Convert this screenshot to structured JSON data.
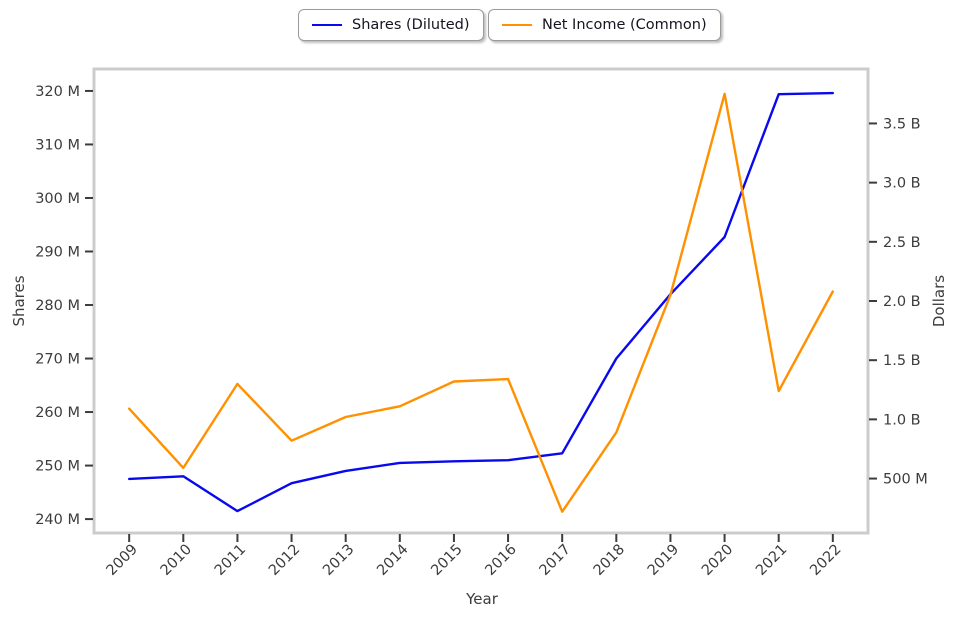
{
  "chart_data": {
    "type": "line",
    "xlabel": "Year",
    "x": [
      2009,
      2010,
      2011,
      2012,
      2013,
      2014,
      2015,
      2016,
      2017,
      2018,
      2019,
      2020,
      2021,
      2022
    ],
    "x_range": [
      2008.35,
      2022.65
    ],
    "x_tick_rotation_deg": 45,
    "grid": false,
    "legend_position": "top-center",
    "series": [
      {
        "name": "Shares (Diluted)",
        "axis": "left",
        "color": "#0909ee",
        "unit": "shares (M)",
        "values": [
          247.5,
          248.0,
          241.5,
          246.7,
          249.0,
          250.5,
          250.8,
          251.0,
          252.3,
          270.0,
          282.0,
          292.7,
          319.4,
          319.6
        ]
      },
      {
        "name": "Net Income (Common)",
        "axis": "right",
        "color": "#ff9100",
        "unit": "dollars (B)",
        "values": [
          1.09,
          0.59,
          1.3,
          0.82,
          1.02,
          1.11,
          1.32,
          1.34,
          0.22,
          0.89,
          2.05,
          3.75,
          1.24,
          2.08
        ]
      }
    ],
    "y_left": {
      "label": "Shares",
      "range": [
        237.4,
        324.1
      ],
      "ticks": [
        {
          "value": 240,
          "label": "240 M"
        },
        {
          "value": 250,
          "label": "250 M"
        },
        {
          "value": 260,
          "label": "260 M"
        },
        {
          "value": 270,
          "label": "270 M"
        },
        {
          "value": 280,
          "label": "280 M"
        },
        {
          "value": 290,
          "label": "290 M"
        },
        {
          "value": 300,
          "label": "300 M"
        },
        {
          "value": 310,
          "label": "310 M"
        },
        {
          "value": 320,
          "label": "320 M"
        }
      ]
    },
    "y_right": {
      "label": "Dollars",
      "range": [
        0.04,
        3.96
      ],
      "ticks": [
        {
          "value": 0.5,
          "label": "500 M"
        },
        {
          "value": 1.0,
          "label": "1.0 B"
        },
        {
          "value": 1.5,
          "label": "1.5 B"
        },
        {
          "value": 2.0,
          "label": "2.0 B"
        },
        {
          "value": 2.5,
          "label": "2.5 B"
        },
        {
          "value": 3.0,
          "label": "3.0 B"
        },
        {
          "value": 3.5,
          "label": "3.5 B"
        }
      ]
    }
  }
}
